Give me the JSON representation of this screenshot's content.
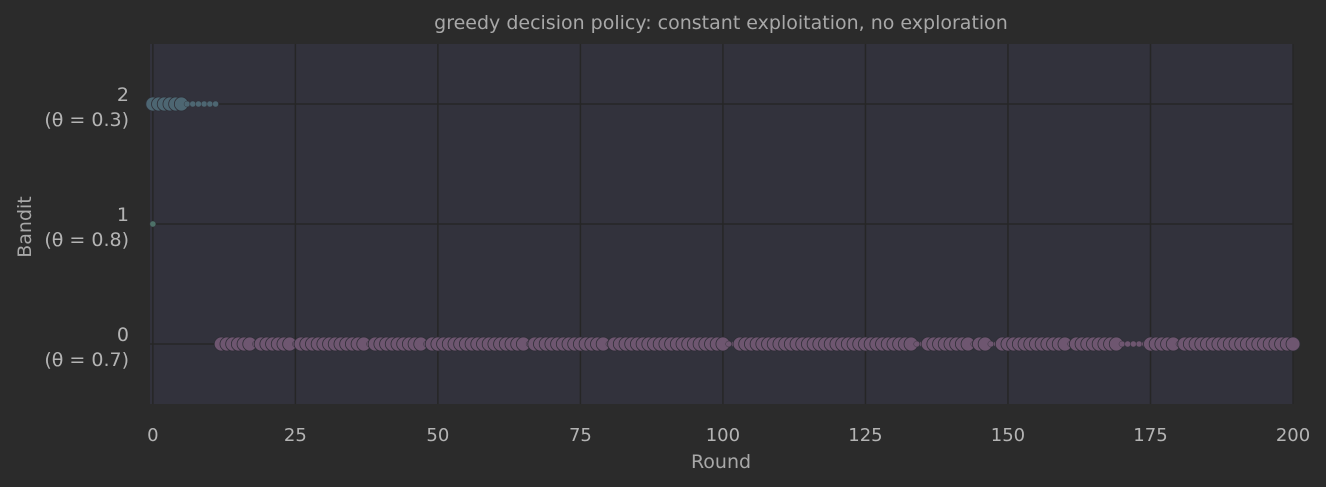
{
  "chart_data": {
    "type": "scatter",
    "title": "greedy decision policy: constant exploitation, no exploration",
    "xlabel": "Round",
    "ylabel": "Bandit",
    "xlim": [
      -0.5,
      200
    ],
    "ylim": [
      -0.5,
      2.5
    ],
    "xticks": [
      "0",
      "25",
      "50",
      "75",
      "100",
      "125",
      "150",
      "175",
      "200"
    ],
    "xtick_values": [
      0,
      25,
      50,
      75,
      100,
      125,
      150,
      175,
      200
    ],
    "categories": [
      {
        "value": 0,
        "label": "0",
        "sublabel": "(θ = 0.7)"
      },
      {
        "value": 1,
        "label": "1",
        "sublabel": "(θ = 0.8)"
      },
      {
        "value": 2,
        "label": "2",
        "sublabel": "(θ = 0.3)"
      }
    ],
    "grid": true,
    "colors": {
      "bandit_0": "#6e5670",
      "bandit_1": "#4d7068",
      "bandit_2": "#4d6672",
      "plot_bg": "#32323c",
      "page_bg": "#2b2b2b",
      "grid": "#262626"
    },
    "series": [
      {
        "bandit": 0,
        "rewards": [],
        "rounds_start": 12,
        "rounds_end": 200,
        "failure_rounds": [
          18,
          25,
          38,
          48,
          66,
          80,
          101,
          102,
          134,
          135,
          144,
          147,
          148,
          161,
          170,
          171,
          172,
          173,
          174,
          180
        ]
      },
      {
        "bandit": 1,
        "rounds": [
          0
        ],
        "rewards": [
          0
        ]
      },
      {
        "bandit": 2,
        "rounds": [
          0,
          1,
          2,
          3,
          4,
          5,
          6,
          7,
          8,
          9,
          10,
          11
        ],
        "rewards": [
          1,
          1,
          1,
          1,
          1,
          1,
          0,
          0,
          0,
          0,
          0,
          0
        ]
      }
    ]
  }
}
